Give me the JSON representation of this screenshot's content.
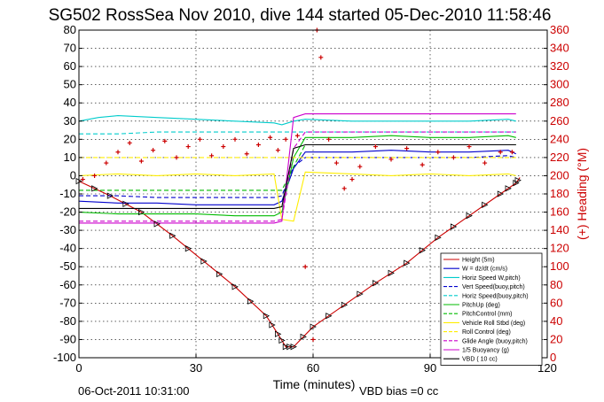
{
  "figure": {
    "title": "SG502 RossSea Nov 2010, dive 144 started 05-Dec-2010 11:58:46",
    "footer_left": "06-Oct-2011 10:31:00",
    "footer_right": "VBD bias =0 cc"
  },
  "chart_data": {
    "type": "line",
    "title": "SG502 RossSea Nov 2010, dive 144 started 05-Dec-2010 11:58:46",
    "xlabel": "Time (minutes)",
    "ylabel": "",
    "y2label": "(+) Heading (°M)",
    "xlim": [
      0,
      120
    ],
    "ylim": [
      -100,
      80
    ],
    "y2lim": [
      0,
      360
    ],
    "xticks": [
      0,
      30,
      60,
      90,
      120
    ],
    "yticks": [
      80,
      70,
      60,
      50,
      40,
      30,
      20,
      10,
      0,
      -10,
      -20,
      -30,
      -40,
      -50,
      -60,
      -70,
      -80,
      -90,
      -100
    ],
    "y2ticks": [
      360,
      340,
      320,
      300,
      280,
      260,
      240,
      220,
      200,
      180,
      160,
      140,
      120,
      100,
      80,
      60,
      40,
      20,
      0
    ],
    "grid": true,
    "legend_position": "lower-right",
    "series": [
      {
        "name": "Height (5m)",
        "color": "#cc0000",
        "style": "solid",
        "x": [
          0,
          8,
          16,
          24,
          32,
          40,
          48,
          51,
          53,
          55,
          60,
          68,
          76,
          84,
          92,
          100,
          108,
          112,
          113
        ],
        "y": [
          -3,
          -11,
          -20,
          -33,
          -47,
          -61,
          -77,
          -87,
          -94,
          -94,
          -83,
          -71,
          -59,
          -48,
          -34,
          -22,
          -10,
          -4,
          -1
        ]
      },
      {
        "name": "W = dz/dt (cm/s)",
        "color": "#0000cc",
        "style": "solid",
        "x": [
          0,
          10,
          20,
          30,
          40,
          50,
          52,
          55,
          58,
          70,
          80,
          90,
          100,
          110,
          112
        ],
        "y": [
          -14,
          -15,
          -15,
          -16,
          -16,
          -16,
          -14,
          4,
          13,
          13,
          14,
          13,
          13,
          14,
          12
        ]
      },
      {
        "name": "Horiz Speed W,pitch)",
        "color": "#00cccc",
        "style": "solid",
        "x": [
          0,
          5,
          10,
          20,
          30,
          40,
          50,
          52,
          55,
          58,
          70,
          80,
          90,
          100,
          110,
          112
        ],
        "y": [
          30,
          32,
          33,
          32,
          31,
          30,
          29,
          28,
          30,
          31,
          30,
          30,
          30,
          30,
          31,
          30
        ]
      },
      {
        "name": "Vert Speed(buoy,pitch)",
        "color": "#0000cc",
        "style": "dashed",
        "x": [
          0,
          10,
          20,
          30,
          40,
          50,
          52,
          55,
          58,
          70,
          80,
          90,
          100,
          110,
          112
        ],
        "y": [
          -11,
          -11,
          -12,
          -12,
          -12,
          -12,
          -11,
          5,
          10,
          10,
          10,
          10,
          10,
          11,
          10
        ]
      },
      {
        "name": "Horiz Speed(buoy,pitch)",
        "color": "#00cccc",
        "style": "dashed",
        "x": [
          0,
          10,
          20,
          30,
          40,
          50,
          52,
          55,
          58,
          70,
          80,
          90,
          100,
          110,
          112
        ],
        "y": [
          23,
          23,
          24,
          24,
          24,
          24,
          24,
          24,
          24,
          24,
          24,
          24,
          24,
          24,
          24
        ]
      },
      {
        "name": "PitchUp (deg)",
        "color": "#00bb00",
        "style": "solid",
        "x": [
          0,
          10,
          20,
          30,
          40,
          50,
          52,
          55,
          58,
          70,
          80,
          90,
          100,
          110,
          112
        ],
        "y": [
          -20,
          -21,
          -21,
          -21,
          -22,
          -22,
          -20,
          10,
          21,
          21,
          22,
          21,
          21,
          22,
          21
        ]
      },
      {
        "name": "PitchControl (mm)",
        "color": "#00bb00",
        "style": "dashed",
        "x": [
          0,
          10,
          20,
          30,
          40,
          50,
          52,
          55,
          58,
          70,
          80,
          90,
          100,
          110,
          112
        ],
        "y": [
          -8,
          -8,
          -8,
          -8,
          -8,
          -8,
          -8,
          5,
          17,
          17,
          17,
          17,
          17,
          17,
          17
        ]
      },
      {
        "name": "Vehicle Roll Stbd (deg)",
        "color": "#ffee00",
        "style": "solid",
        "x": [
          0,
          10,
          20,
          30,
          40,
          50,
          52,
          55,
          58,
          70,
          80,
          90,
          100,
          110,
          112
        ],
        "y": [
          0,
          1,
          0,
          1,
          0,
          1,
          -24,
          -25,
          2,
          1,
          0,
          1,
          0,
          1,
          0
        ]
      },
      {
        "name": "Roll Control (deg)",
        "color": "#ffee00",
        "style": "dashed",
        "x": [
          0,
          10,
          20,
          30,
          40,
          50,
          52,
          55,
          58,
          70,
          80,
          90,
          100,
          110,
          112
        ],
        "y": [
          10,
          10,
          10,
          10,
          10,
          10,
          10,
          10,
          10,
          10,
          10,
          10,
          10,
          10,
          10
        ]
      },
      {
        "name": "Glide Angle (buoy,pitch)",
        "color": "#cc00cc",
        "style": "dashed",
        "x": [
          0,
          10,
          20,
          30,
          40,
          50,
          52,
          55,
          58,
          70,
          80,
          90,
          100,
          110,
          112
        ],
        "y": [
          -25,
          -25,
          -25,
          -25,
          -25,
          -25,
          -24,
          15,
          24,
          24,
          24,
          24,
          24,
          24,
          24
        ]
      },
      {
        "name": "1/5 Buoyancy (g)",
        "color": "#cc00cc",
        "style": "solid",
        "x": [
          0,
          10,
          20,
          30,
          40,
          50,
          52,
          55,
          58,
          70,
          80,
          90,
          100,
          110,
          112
        ],
        "y": [
          -26,
          -26,
          -26,
          -26,
          -26,
          -26,
          -25,
          32,
          34,
          34,
          34,
          34,
          34,
          34,
          34
        ]
      },
      {
        "name": "VBD ( 10 cc)",
        "color": "#000000",
        "style": "solid",
        "x": [
          0,
          10,
          20,
          30,
          40,
          50,
          52,
          55,
          58,
          70,
          80,
          90,
          100,
          110,
          112
        ],
        "y": [
          -18,
          -18,
          -18,
          -18,
          -18,
          -18,
          -17,
          15,
          17,
          17,
          17,
          17,
          17,
          17,
          17
        ]
      }
    ],
    "heading": {
      "name": "(+) Heading (°M)",
      "color": "#cc0000",
      "axis": "right",
      "marker": "+",
      "x": [
        1,
        4,
        7,
        10,
        13,
        16,
        19,
        22,
        25,
        28,
        31,
        34,
        37,
        40,
        43,
        46,
        49,
        51,
        53,
        56,
        58,
        60,
        61,
        62,
        64,
        66,
        68,
        70,
        72,
        76,
        80,
        84,
        88,
        92,
        96,
        100,
        104,
        108,
        111
      ],
      "y": [
        196,
        200,
        214,
        226,
        236,
        216,
        228,
        238,
        220,
        232,
        240,
        222,
        232,
        240,
        224,
        234,
        242,
        228,
        240,
        244,
        100,
        20,
        360,
        330,
        240,
        214,
        186,
        196,
        210,
        232,
        218,
        230,
        212,
        226,
        220,
        232,
        214,
        226,
        226
      ]
    }
  }
}
